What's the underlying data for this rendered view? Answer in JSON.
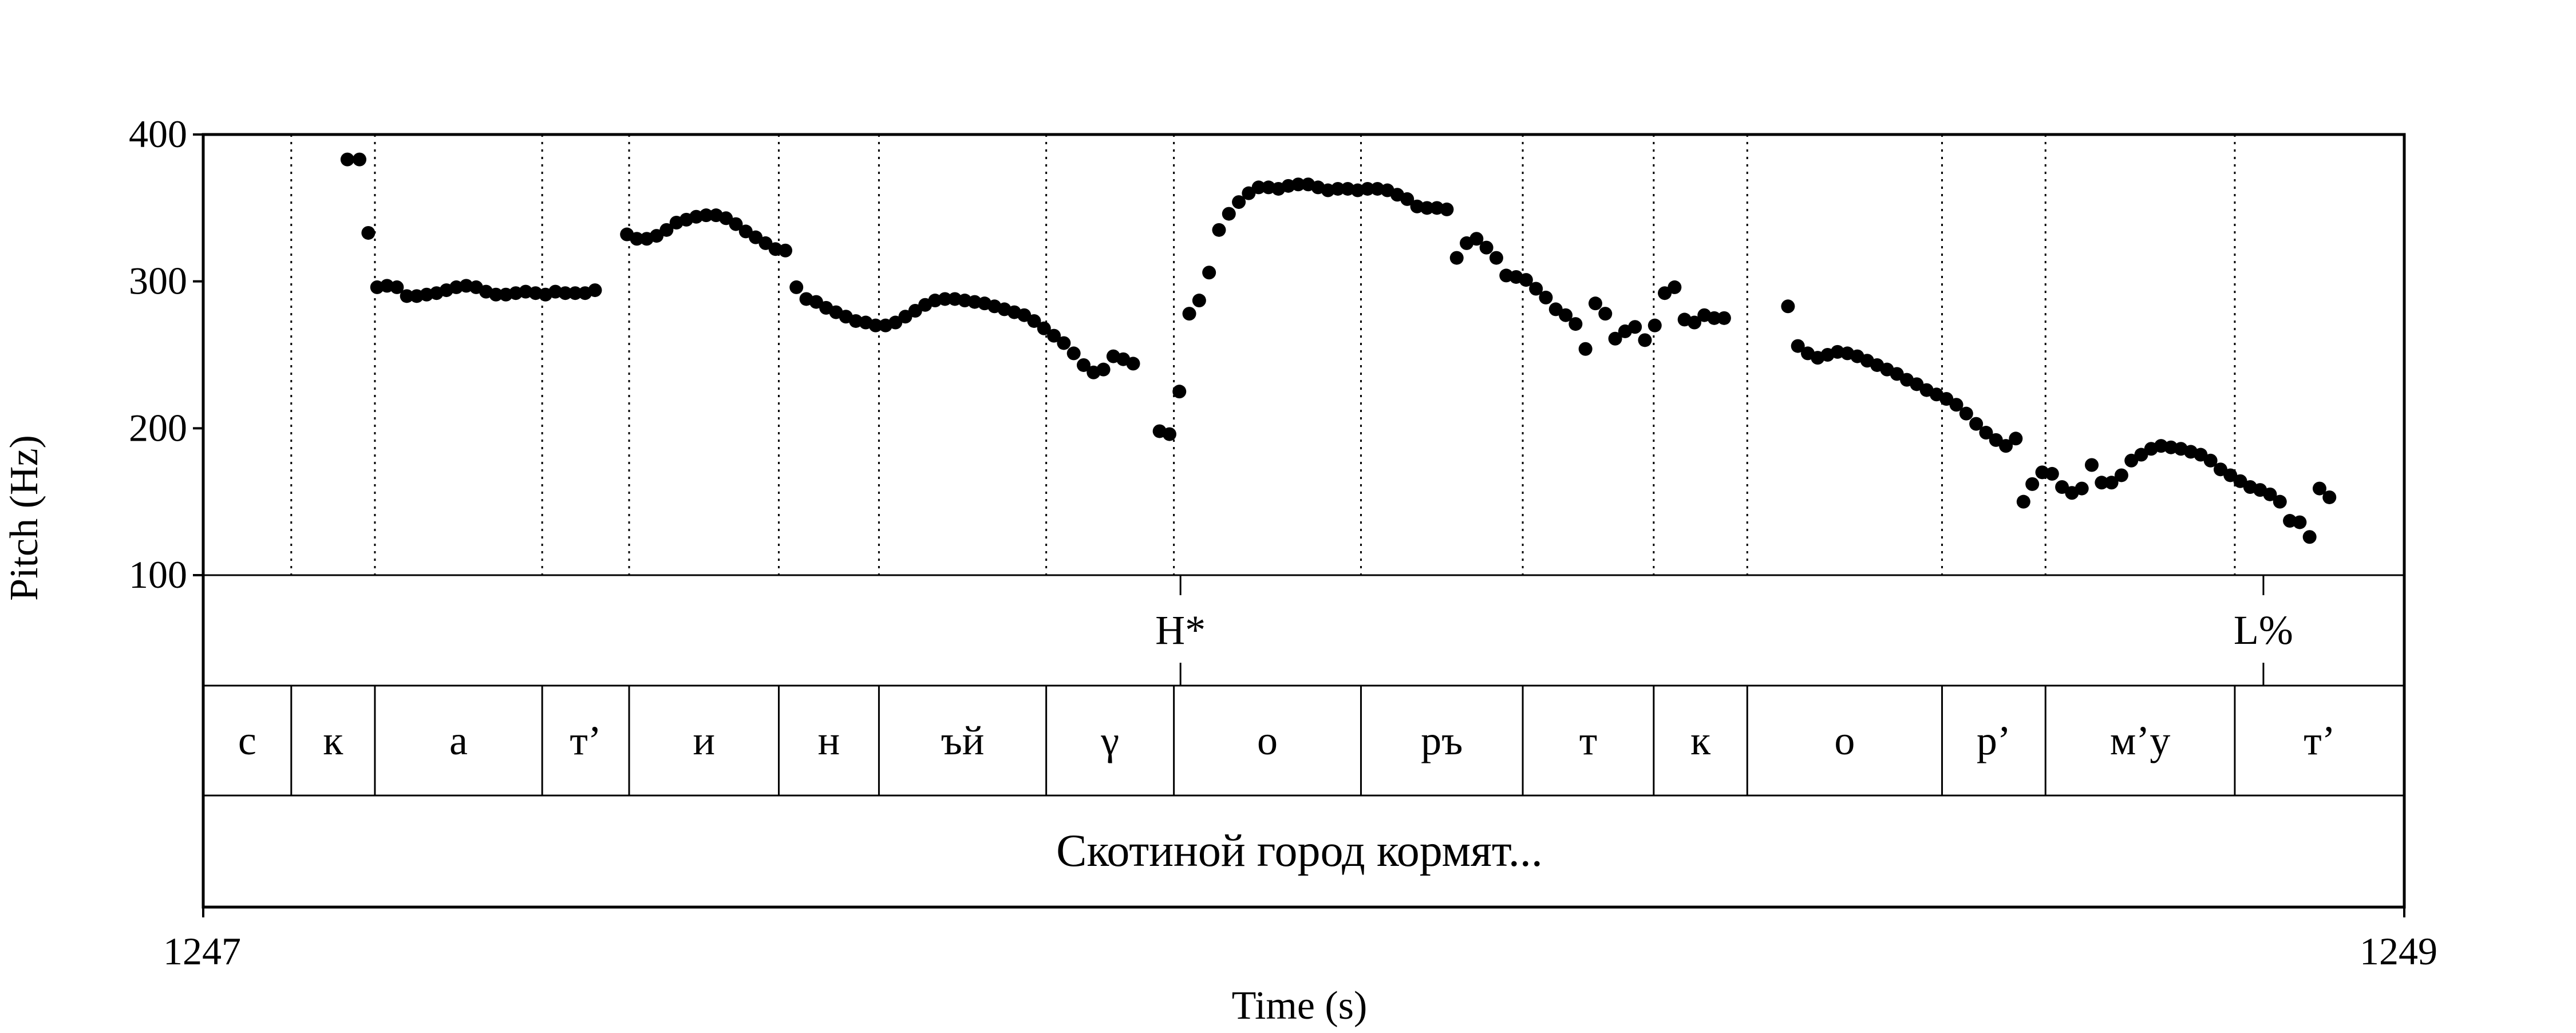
{
  "chart_data": {
    "type": "scatter",
    "xlabel": "Time (s)",
    "ylabel": "Pitch (Hz)",
    "xlim": [
      1247,
      1249
    ],
    "ylim": [
      100,
      400
    ],
    "x_ticks": [
      "1247",
      "1249"
    ],
    "y_ticks": [
      "100",
      "200",
      "300",
      "400"
    ],
    "grid": false,
    "series": [
      {
        "points": [
          [
            1247.131,
            383
          ],
          [
            1247.142,
            383
          ],
          [
            1247.15,
            333
          ],
          [
            1247.158,
            296
          ],
          [
            1247.167,
            297
          ],
          [
            1247.176,
            296
          ],
          [
            1247.185,
            290
          ],
          [
            1247.194,
            290
          ],
          [
            1247.203,
            291
          ],
          [
            1247.212,
            292
          ],
          [
            1247.221,
            294
          ],
          [
            1247.23,
            296
          ],
          [
            1247.239,
            297
          ],
          [
            1247.248,
            296
          ],
          [
            1247.257,
            293
          ],
          [
            1247.266,
            291
          ],
          [
            1247.275,
            291
          ],
          [
            1247.284,
            292
          ],
          [
            1247.293,
            293
          ],
          [
            1247.302,
            292
          ],
          [
            1247.311,
            291
          ],
          [
            1247.32,
            293
          ],
          [
            1247.329,
            292
          ],
          [
            1247.338,
            292
          ],
          [
            1247.347,
            292
          ],
          [
            1247.356,
            294
          ],
          [
            1247.385,
            332
          ],
          [
            1247.394,
            329
          ],
          [
            1247.403,
            329
          ],
          [
            1247.412,
            331
          ],
          [
            1247.421,
            335
          ],
          [
            1247.43,
            340
          ],
          [
            1247.439,
            342
          ],
          [
            1247.448,
            344
          ],
          [
            1247.457,
            345
          ],
          [
            1247.466,
            345
          ],
          [
            1247.475,
            343
          ],
          [
            1247.484,
            339
          ],
          [
            1247.493,
            334
          ],
          [
            1247.502,
            330
          ],
          [
            1247.511,
            326
          ],
          [
            1247.52,
            322
          ],
          [
            1247.529,
            321
          ],
          [
            1247.539,
            296
          ],
          [
            1247.548,
            288
          ],
          [
            1247.557,
            286
          ],
          [
            1247.566,
            282
          ],
          [
            1247.575,
            279
          ],
          [
            1247.584,
            276
          ],
          [
            1247.593,
            273
          ],
          [
            1247.602,
            272
          ],
          [
            1247.611,
            270
          ],
          [
            1247.62,
            270
          ],
          [
            1247.629,
            272
          ],
          [
            1247.638,
            276
          ],
          [
            1247.647,
            280
          ],
          [
            1247.656,
            284
          ],
          [
            1247.665,
            287
          ],
          [
            1247.674,
            288
          ],
          [
            1247.683,
            288
          ],
          [
            1247.692,
            287
          ],
          [
            1247.701,
            286
          ],
          [
            1247.71,
            285
          ],
          [
            1247.719,
            283
          ],
          [
            1247.728,
            281
          ],
          [
            1247.737,
            279
          ],
          [
            1247.746,
            277
          ],
          [
            1247.755,
            273
          ],
          [
            1247.764,
            268
          ],
          [
            1247.773,
            263
          ],
          [
            1247.782,
            258
          ],
          [
            1247.791,
            251
          ],
          [
            1247.8,
            243
          ],
          [
            1247.809,
            238
          ],
          [
            1247.818,
            240
          ],
          [
            1247.827,
            249
          ],
          [
            1247.836,
            247
          ],
          [
            1247.845,
            244
          ],
          [
            1247.869,
            198
          ],
          [
            1247.878,
            196
          ],
          [
            1247.887,
            225
          ],
          [
            1247.896,
            278
          ],
          [
            1247.905,
            287
          ],
          [
            1247.914,
            306
          ],
          [
            1247.923,
            335
          ],
          [
            1247.932,
            346
          ],
          [
            1247.941,
            354
          ],
          [
            1247.95,
            360
          ],
          [
            1247.959,
            364
          ],
          [
            1247.968,
            364
          ],
          [
            1247.977,
            363
          ],
          [
            1247.986,
            365
          ],
          [
            1247.995,
            366
          ],
          [
            1248.004,
            366
          ],
          [
            1248.013,
            364
          ],
          [
            1248.022,
            362
          ],
          [
            1248.031,
            363
          ],
          [
            1248.04,
            363
          ],
          [
            1248.049,
            362
          ],
          [
            1248.058,
            363
          ],
          [
            1248.067,
            363
          ],
          [
            1248.076,
            362
          ],
          [
            1248.085,
            359
          ],
          [
            1248.094,
            356
          ],
          [
            1248.103,
            351
          ],
          [
            1248.112,
            350
          ],
          [
            1248.121,
            350
          ],
          [
            1248.13,
            349
          ],
          [
            1248.139,
            316
          ],
          [
            1248.148,
            326
          ],
          [
            1248.157,
            329
          ],
          [
            1248.166,
            323
          ],
          [
            1248.175,
            316
          ],
          [
            1248.184,
            304
          ],
          [
            1248.193,
            303
          ],
          [
            1248.202,
            301
          ],
          [
            1248.211,
            295
          ],
          [
            1248.22,
            289
          ],
          [
            1248.229,
            281
          ],
          [
            1248.238,
            277
          ],
          [
            1248.247,
            271
          ],
          [
            1248.256,
            254
          ],
          [
            1248.265,
            285
          ],
          [
            1248.274,
            278
          ],
          [
            1248.283,
            261
          ],
          [
            1248.292,
            266
          ],
          [
            1248.301,
            269
          ],
          [
            1248.31,
            260
          ],
          [
            1248.319,
            270
          ],
          [
            1248.328,
            292
          ],
          [
            1248.337,
            296
          ],
          [
            1248.346,
            274
          ],
          [
            1248.355,
            272
          ],
          [
            1248.364,
            277
          ],
          [
            1248.373,
            275
          ],
          [
            1248.382,
            275
          ],
          [
            1248.44,
            283
          ],
          [
            1248.449,
            256
          ],
          [
            1248.458,
            251
          ],
          [
            1248.467,
            248
          ],
          [
            1248.476,
            250
          ],
          [
            1248.485,
            252
          ],
          [
            1248.494,
            251
          ],
          [
            1248.503,
            249
          ],
          [
            1248.512,
            246
          ],
          [
            1248.521,
            243
          ],
          [
            1248.53,
            240
          ],
          [
            1248.539,
            237
          ],
          [
            1248.548,
            233
          ],
          [
            1248.557,
            230
          ],
          [
            1248.566,
            226
          ],
          [
            1248.575,
            223
          ],
          [
            1248.584,
            220
          ],
          [
            1248.593,
            216
          ],
          [
            1248.602,
            210
          ],
          [
            1248.611,
            203
          ],
          [
            1248.62,
            197
          ],
          [
            1248.629,
            192
          ],
          [
            1248.638,
            188
          ],
          [
            1248.647,
            193
          ],
          [
            1248.654,
            150
          ],
          [
            1248.662,
            162
          ],
          [
            1248.671,
            170
          ],
          [
            1248.68,
            169
          ],
          [
            1248.689,
            160
          ],
          [
            1248.698,
            156
          ],
          [
            1248.707,
            159
          ],
          [
            1248.716,
            175
          ],
          [
            1248.725,
            163
          ],
          [
            1248.734,
            163
          ],
          [
            1248.743,
            168
          ],
          [
            1248.752,
            178
          ],
          [
            1248.761,
            182
          ],
          [
            1248.77,
            186
          ],
          [
            1248.779,
            188
          ],
          [
            1248.788,
            187
          ],
          [
            1248.797,
            186
          ],
          [
            1248.806,
            184
          ],
          [
            1248.815,
            182
          ],
          [
            1248.824,
            178
          ],
          [
            1248.833,
            172
          ],
          [
            1248.842,
            168
          ],
          [
            1248.851,
            164
          ],
          [
            1248.86,
            160
          ],
          [
            1248.869,
            158
          ],
          [
            1248.878,
            155
          ],
          [
            1248.887,
            150
          ],
          [
            1248.896,
            137
          ],
          [
            1248.905,
            136
          ],
          [
            1248.914,
            126
          ],
          [
            1248.923,
            159
          ],
          [
            1248.932,
            153
          ]
        ]
      }
    ],
    "tiers": {
      "tones": {
        "boundaries": [
          1247.888,
          1248.872
        ],
        "labels": [
          {
            "x": 1247.888,
            "text": "H*"
          },
          {
            "x": 1248.872,
            "text": "L%"
          }
        ]
      },
      "segments": {
        "boundaries": [
          1247.0,
          1247.08,
          1247.156,
          1247.308,
          1247.387,
          1247.523,
          1247.614,
          1247.766,
          1247.882,
          1248.052,
          1248.199,
          1248.318,
          1248.403,
          1248.58,
          1248.674,
          1248.846,
          1249.0
        ],
        "labels": [
          "с",
          "к",
          "а",
          "т’",
          "и",
          "н",
          "ъй",
          "γ",
          "о",
          "ръ",
          "т",
          "к",
          "о",
          "р’",
          "м’у",
          "т’"
        ]
      },
      "sentence": {
        "text": "Скотиной город кормят..."
      }
    }
  }
}
